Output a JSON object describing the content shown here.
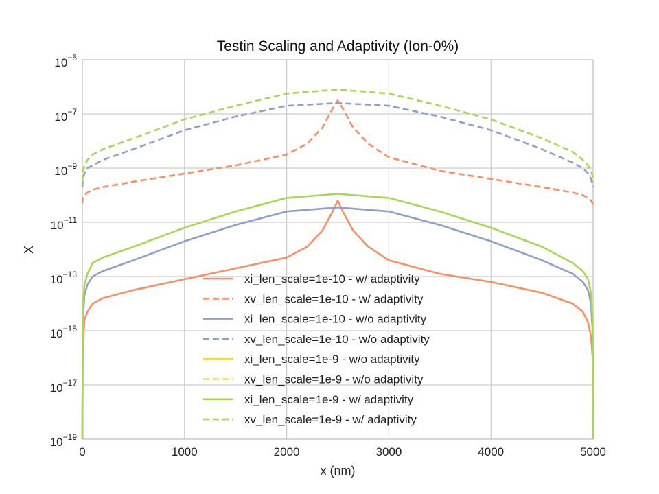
{
  "chart_data": {
    "type": "line",
    "title": "Testin Scaling and Adaptivity (Ion-0%)",
    "xlabel": "x (nm)",
    "ylabel": "X",
    "xlim": [
      0,
      5000
    ],
    "ylim_log10": [
      -19,
      -5
    ],
    "yscale": "log",
    "grid": true,
    "legend_position": "lower-center",
    "x_ticks": [
      0,
      1000,
      2000,
      3000,
      4000,
      5000
    ],
    "x_tick_labels": [
      "0",
      "1000",
      "2000",
      "3000",
      "4000",
      "5000"
    ],
    "y_ticks_log10": [
      -19,
      -17,
      -15,
      -13,
      -11,
      -9,
      -7,
      -5
    ],
    "y_tick_base": "10",
    "y_tick_exponents": [
      "−19",
      "−17",
      "−15",
      "−13",
      "−11",
      "−9",
      "−7",
      "−5"
    ],
    "series": [
      {
        "name": "xi_len_scale=1e-10 - w/ adaptivity",
        "color": "#fc8d62",
        "style": "solid",
        "x": [
          0,
          5,
          20,
          50,
          100,
          200,
          500,
          1000,
          1500,
          2000,
          2200,
          2350,
          2450,
          2500,
          2550,
          2650,
          2800,
          3000,
          3500,
          4000,
          4500,
          4800,
          4900,
          4950,
          4980,
          4995,
          5000
        ],
        "log10_y": [
          -19,
          -15.5,
          -14.6,
          -14.3,
          -14.0,
          -13.8,
          -13.5,
          -13.1,
          -12.7,
          -12.3,
          -11.9,
          -11.3,
          -10.6,
          -10.2,
          -10.6,
          -11.3,
          -11.9,
          -12.4,
          -12.9,
          -13.2,
          -13.6,
          -14.0,
          -14.3,
          -14.7,
          -15.2,
          -16.0,
          -19
        ]
      },
      {
        "name": "xv_len_scale=1e-10 - w/ adaptivity",
        "color": "#fc8d62",
        "style": "dashed",
        "x": [
          0,
          5,
          20,
          50,
          100,
          200,
          500,
          1000,
          1500,
          2000,
          2200,
          2350,
          2450,
          2500,
          2550,
          2650,
          2800,
          3000,
          3500,
          4000,
          4500,
          4800,
          4900,
          4950,
          4980,
          4995,
          5000
        ],
        "log10_y": [
          -10.3,
          -10.1,
          -10.0,
          -9.9,
          -9.8,
          -9.7,
          -9.5,
          -9.2,
          -8.9,
          -8.5,
          -8.1,
          -7.5,
          -6.8,
          -6.5,
          -6.8,
          -7.5,
          -8.1,
          -8.6,
          -9.1,
          -9.4,
          -9.7,
          -9.9,
          -10.0,
          -10.1,
          -10.2,
          -10.3,
          -10.35
        ]
      },
      {
        "name": "xi_len_scale=1e-10 - w/o adaptivity",
        "color": "#8da0cb",
        "style": "solid",
        "x": [
          0,
          5,
          20,
          50,
          100,
          200,
          500,
          1000,
          1500,
          2000,
          2500,
          3000,
          3500,
          4000,
          4500,
          4800,
          4900,
          4950,
          4980,
          4995,
          5000
        ],
        "log10_y": [
          -19,
          -14.6,
          -13.7,
          -13.3,
          -13.0,
          -12.8,
          -12.4,
          -11.7,
          -11.1,
          -10.6,
          -10.45,
          -10.6,
          -11.1,
          -11.7,
          -12.4,
          -12.9,
          -13.2,
          -13.5,
          -14.0,
          -15.0,
          -19
        ]
      },
      {
        "name": "xv_len_scale=1e-10 - w/o adaptivity",
        "color": "#8da0cb",
        "style": "dashed",
        "x": [
          0,
          5,
          20,
          50,
          100,
          200,
          500,
          1000,
          1500,
          2000,
          2500,
          3000,
          3500,
          4000,
          4500,
          4800,
          4900,
          4950,
          4980,
          4995,
          5000
        ],
        "log10_y": [
          -9.7,
          -9.4,
          -9.2,
          -9.0,
          -8.9,
          -8.7,
          -8.3,
          -7.6,
          -7.1,
          -6.7,
          -6.6,
          -6.7,
          -7.1,
          -7.6,
          -8.3,
          -8.8,
          -9.0,
          -9.2,
          -9.4,
          -9.6,
          -9.7
        ]
      },
      {
        "name": "xi_len_scale=1e-9 - w/o adaptivity",
        "color": "#ffd92f",
        "style": "solid",
        "x": [],
        "log10_y": []
      },
      {
        "name": "xv_len_scale=1e-9 - w/o adaptivity",
        "color": "#ffd92f",
        "style": "dashed",
        "x": [],
        "log10_y": []
      },
      {
        "name": "xi_len_scale=1e-9 - w/ adaptivity",
        "color": "#a6d854",
        "style": "solid",
        "x": [
          0,
          5,
          20,
          50,
          100,
          200,
          500,
          1000,
          1500,
          2000,
          2500,
          3000,
          3500,
          4000,
          4500,
          4800,
          4900,
          4950,
          4980,
          4995,
          5000
        ],
        "log10_y": [
          -19,
          -14.2,
          -13.3,
          -12.9,
          -12.5,
          -12.3,
          -11.9,
          -11.2,
          -10.6,
          -10.1,
          -9.95,
          -10.1,
          -10.6,
          -11.2,
          -11.9,
          -12.5,
          -12.8,
          -13.1,
          -13.6,
          -14.6,
          -19
        ]
      },
      {
        "name": "xv_len_scale=1e-9 - w/ adaptivity",
        "color": "#a6d854",
        "style": "dashed",
        "x": [
          0,
          5,
          20,
          50,
          100,
          200,
          500,
          1000,
          1500,
          2000,
          2500,
          3000,
          3500,
          4000,
          4500,
          4800,
          4900,
          4950,
          4980,
          4995,
          5000
        ],
        "log10_y": [
          -9.5,
          -9.1,
          -8.9,
          -8.7,
          -8.5,
          -8.3,
          -7.9,
          -7.2,
          -6.7,
          -6.25,
          -6.1,
          -6.25,
          -6.7,
          -7.2,
          -7.9,
          -8.4,
          -8.7,
          -8.9,
          -9.1,
          -9.3,
          -9.5
        ]
      }
    ]
  }
}
